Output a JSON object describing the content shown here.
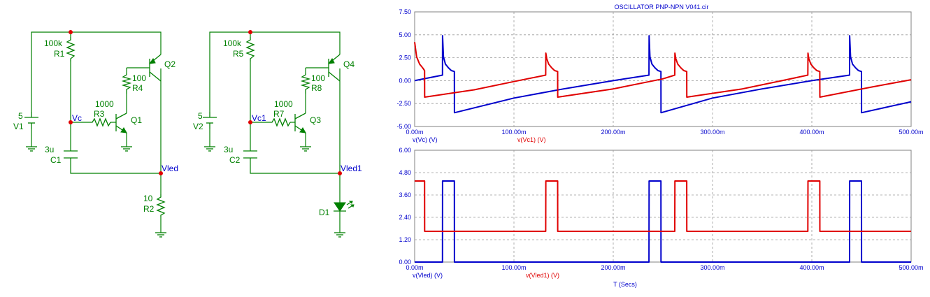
{
  "schematic": {
    "circuit1": {
      "v_source": {
        "value": "5",
        "name": "V1"
      },
      "r_top": {
        "value": "100k",
        "name": "R1"
      },
      "r_base": {
        "value": "1000",
        "name": "R3"
      },
      "r_mid": {
        "value": "100",
        "name": "R4"
      },
      "r_out": {
        "value": "10",
        "name": "R2"
      },
      "cap": {
        "value": "3u",
        "name": "C1"
      },
      "q_npn": {
        "name": "Q1"
      },
      "q_pnp": {
        "name": "Q2"
      },
      "node_c": "Vc",
      "node_led": "Vled"
    },
    "circuit2": {
      "v_source": {
        "value": "5",
        "name": "V2"
      },
      "r_top": {
        "value": "100k",
        "name": "R5"
      },
      "r_base": {
        "value": "1000",
        "name": "R7"
      },
      "r_mid": {
        "value": "100",
        "name": "R8"
      },
      "cap": {
        "value": "3u",
        "name": "C2"
      },
      "q_npn": {
        "name": "Q3"
      },
      "q_pnp": {
        "name": "Q4"
      },
      "diode": {
        "name": "D1"
      },
      "node_c": "Vc1",
      "node_led": "Vled1"
    }
  },
  "colors": {
    "wire": "#008000",
    "node_label": "#0000cc",
    "node_dot": "#e00000",
    "series_blue": "#0000cc",
    "series_red": "#e00000"
  },
  "chart_data": [
    {
      "type": "line",
      "title": "OSCILLATOR PNP-NPN V041.cir",
      "x_ticks": [
        "0.00m",
        "100.00m",
        "200.00m",
        "300.00m",
        "400.00m",
        "500.00m"
      ],
      "y_ticks": [
        "7.50",
        "5.00",
        "2.50",
        "0.00",
        "-2.50",
        "-5.00"
      ],
      "xlim": [
        0,
        500
      ],
      "ylim": [
        -5,
        7.5
      ],
      "series": [
        {
          "name": "v(Vc) (V)",
          "color": "#0000cc",
          "x": [
            0,
            28,
            28.1,
            29,
            31,
            34,
            37,
            40,
            40.1,
            100,
            150,
            200,
            236,
            236.1,
            237,
            239,
            242,
            245,
            248,
            248.1,
            300,
            350,
            400,
            438,
            438.1,
            439,
            441,
            444,
            447,
            450,
            450.1,
            500
          ],
          "y": [
            0,
            0.6,
            4.9,
            2.6,
            1.8,
            1.4,
            1.1,
            1.0,
            -3.5,
            -1.9,
            -0.9,
            0,
            0.6,
            4.9,
            2.6,
            1.8,
            1.4,
            1.1,
            1.0,
            -3.5,
            -1.9,
            -0.9,
            0,
            0.6,
            4.9,
            2.6,
            1.8,
            1.4,
            1.1,
            1.0,
            -3.5,
            -2.3
          ]
        },
        {
          "name": "v(Vc1) (V)",
          "color": "#e00000",
          "x": [
            0,
            2,
            5,
            8,
            10,
            10.1,
            60,
            100,
            132,
            132.1,
            133,
            135,
            138,
            141,
            144,
            144.1,
            200,
            250,
            262,
            262.1,
            263,
            265,
            268,
            271,
            274,
            274.1,
            330,
            370,
            396,
            396.1,
            397,
            399,
            402,
            405,
            408,
            408.1,
            460,
            500
          ],
          "y": [
            4.2,
            2.6,
            1.8,
            1.4,
            1.1,
            -1.8,
            -1.0,
            -0.1,
            0.6,
            3.0,
            2.4,
            1.8,
            1.4,
            1.1,
            1.0,
            -1.8,
            -0.9,
            0.2,
            0.6,
            3.0,
            2.4,
            1.8,
            1.4,
            1.1,
            1.0,
            -1.8,
            -0.9,
            0,
            0.6,
            3.0,
            2.4,
            1.8,
            1.4,
            1.1,
            1.0,
            -1.8,
            -0.7,
            0.1
          ]
        }
      ]
    },
    {
      "type": "line",
      "xlabel": "T (Secs)",
      "x_ticks": [
        "0.00m",
        "100.00m",
        "200.00m",
        "300.00m",
        "400.00m",
        "500.00m"
      ],
      "y_ticks": [
        "6.00",
        "4.80",
        "3.60",
        "2.40",
        "1.20",
        "0.00"
      ],
      "xlim": [
        0,
        500
      ],
      "ylim": [
        0,
        6
      ],
      "series": [
        {
          "name": "v(Vled) (V)",
          "color": "#0000cc",
          "x": [
            0,
            28,
            28.1,
            40,
            40.1,
            236,
            236.1,
            248,
            248.1,
            438,
            438.1,
            450,
            450.1,
            500
          ],
          "y": [
            0,
            0,
            4.35,
            4.35,
            0,
            0,
            4.35,
            4.35,
            0,
            0,
            4.35,
            4.35,
            0,
            0
          ]
        },
        {
          "name": "v(Vled1) (V)",
          "color": "#e00000",
          "x": [
            0,
            10,
            10.1,
            132,
            132.1,
            144,
            144.1,
            262,
            262.1,
            274,
            274.1,
            396,
            396.1,
            408,
            408.1,
            500
          ],
          "y": [
            4.35,
            4.35,
            1.65,
            1.65,
            4.35,
            4.35,
            1.65,
            1.65,
            4.35,
            4.35,
            1.65,
            1.65,
            4.35,
            4.35,
            1.65,
            1.65
          ]
        }
      ]
    }
  ]
}
